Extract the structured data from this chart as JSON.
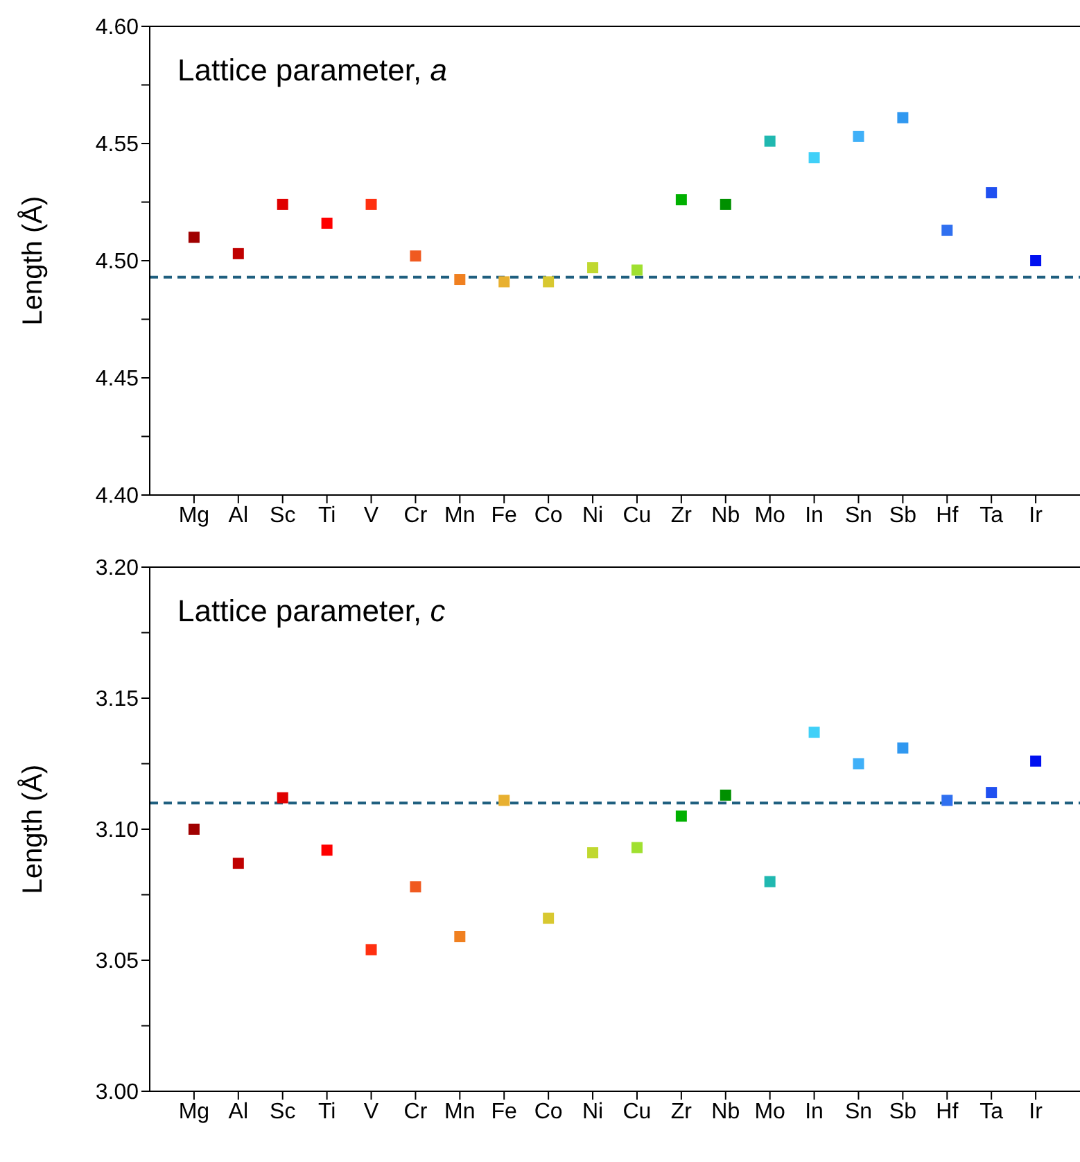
{
  "chart_data": [
    {
      "type": "scatter",
      "title": "Lattice parameter, a",
      "ylabel": "Length (Å)",
      "categories": [
        "Mg",
        "Al",
        "Sc",
        "Ti",
        "V",
        "Cr",
        "Mn",
        "Fe",
        "Co",
        "Ni",
        "Cu",
        "Zr",
        "Nb",
        "Mo",
        "In",
        "Sn",
        "Sb",
        "Hf",
        "Ta",
        "Ir"
      ],
      "values": [
        4.51,
        4.503,
        4.524,
        4.516,
        4.524,
        4.502,
        4.492,
        4.491,
        4.491,
        4.497,
        4.496,
        4.526,
        4.524,
        4.551,
        4.544,
        4.553,
        4.561,
        4.513,
        4.529,
        4.5
      ],
      "colors": [
        "#a00000",
        "#c00000",
        "#e00000",
        "#ff0000",
        "#ff3010",
        "#f05a20",
        "#f08020",
        "#e8b030",
        "#d8c830",
        "#c0d830",
        "#a0e030",
        "#00b000",
        "#009000",
        "#20b8b0",
        "#40d0f8",
        "#40b0f8",
        "#3098f0",
        "#3070f0",
        "#2050f0",
        "#0010f0"
      ],
      "ylim": [
        4.4,
        4.6
      ],
      "yticks": [
        {
          "value": 4.4,
          "label": "4.40"
        },
        {
          "value": 4.425,
          "label": null
        },
        {
          "value": 4.45,
          "label": "4.45"
        },
        {
          "value": 4.475,
          "label": null
        },
        {
          "value": 4.5,
          "label": "4.50"
        },
        {
          "value": 4.525,
          "label": null
        },
        {
          "value": 4.55,
          "label": "4.55"
        },
        {
          "value": 4.575,
          "label": null
        },
        {
          "value": 4.6,
          "label": "4.60"
        }
      ],
      "ref_lines": [
        {
          "axis": "y",
          "value": 4.493,
          "label": null,
          "color": "#1f5f7f",
          "line_style": "dashed"
        }
      ],
      "marker": "square",
      "grid": false,
      "legend": false
    },
    {
      "type": "scatter",
      "title": "Lattice parameter, c",
      "ylabel": "Length (Å)",
      "categories": [
        "Mg",
        "Al",
        "Sc",
        "Ti",
        "V",
        "Cr",
        "Mn",
        "Fe",
        "Co",
        "Ni",
        "Cu",
        "Zr",
        "Nb",
        "Mo",
        "In",
        "Sn",
        "Sb",
        "Hf",
        "Ta",
        "Ir"
      ],
      "values": [
        3.1,
        3.087,
        3.112,
        3.092,
        3.054,
        3.078,
        3.059,
        3.111,
        3.066,
        3.091,
        3.093,
        3.105,
        3.113,
        3.08,
        3.137,
        3.125,
        3.131,
        3.111,
        3.114,
        3.126
      ],
      "colors": [
        "#a00000",
        "#c00000",
        "#e00000",
        "#ff0000",
        "#ff3010",
        "#f05a20",
        "#f08020",
        "#e8b030",
        "#d8c830",
        "#c0d830",
        "#a0e030",
        "#00b000",
        "#009000",
        "#20b8b0",
        "#40d0f8",
        "#40b0f8",
        "#3098f0",
        "#3070f0",
        "#2050f0",
        "#0010f0"
      ],
      "ylim": [
        3.0,
        3.2
      ],
      "yticks": [
        {
          "value": 3.0,
          "label": "3.00"
        },
        {
          "value": 3.025,
          "label": null
        },
        {
          "value": 3.05,
          "label": "3.05"
        },
        {
          "value": 3.075,
          "label": null
        },
        {
          "value": 3.1,
          "label": "3.10"
        },
        {
          "value": 3.125,
          "label": null
        },
        {
          "value": 3.15,
          "label": "3.15"
        },
        {
          "value": 3.175,
          "label": null
        },
        {
          "value": 3.2,
          "label": "3.20"
        }
      ],
      "ref_lines": [
        {
          "axis": "y",
          "value": 3.11,
          "label": null,
          "color": "#1f5f7f",
          "line_style": "dashed"
        }
      ],
      "marker": "square",
      "grid": false,
      "legend": false
    }
  ]
}
